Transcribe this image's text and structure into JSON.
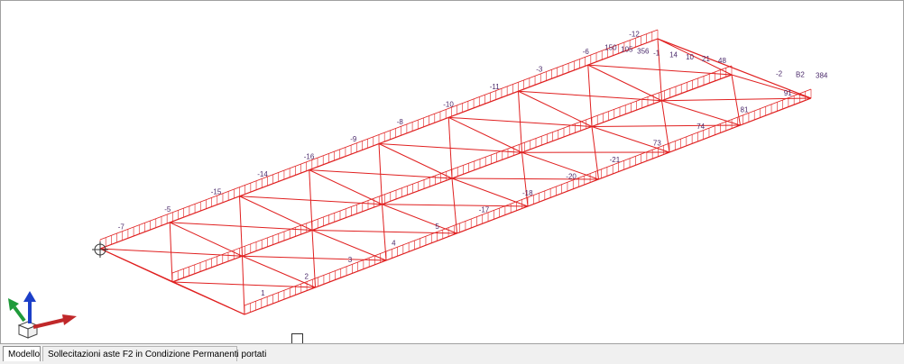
{
  "viewport": {
    "label_color": "#4b2a6b",
    "member_color": "#e02020",
    "axis_colors": {
      "x": "#c0282a",
      "y": "#1f9a3a",
      "z": "#1c3fc8"
    },
    "top_chord_labels": [
      "-7",
      "-5",
      "-15",
      "-14",
      "-16",
      "-9",
      "-8",
      "-10",
      "-11",
      "-3",
      "-6",
      "-12"
    ],
    "far_chord_labels": [
      "150",
      "105",
      "356",
      "-1",
      "14",
      "10",
      "21",
      "48"
    ],
    "bottom_chord_labels": [
      "1",
      "2",
      "3",
      "4",
      "5",
      "-17",
      "-18",
      "-20",
      "-21",
      "73",
      "74",
      "81",
      "91"
    ],
    "end_labels": [
      "-2",
      "B2",
      "384"
    ]
  },
  "tabs": [
    {
      "label": "Modello"
    },
    {
      "label": "Sollecitazioni aste F2 in Condizione Permanenti portati"
    }
  ]
}
